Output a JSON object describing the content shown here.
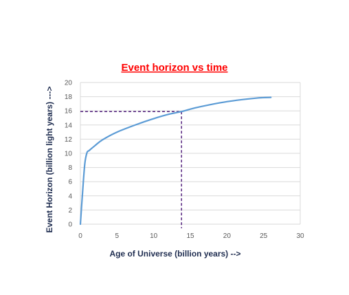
{
  "chart_data": {
    "type": "line",
    "title": "Event horizon vs  time",
    "xlabel": "Age of Universe (billion years) -->",
    "ylabel": "Event Horizon (billion light years) --->",
    "xlim": [
      0,
      30
    ],
    "ylim": [
      0,
      20
    ],
    "xticks": [
      0,
      5,
      10,
      15,
      20,
      25,
      30
    ],
    "yticks": [
      0,
      2,
      4,
      6,
      8,
      10,
      12,
      14,
      16,
      18,
      20
    ],
    "grid": "horizontal",
    "legend": "none",
    "series": [
      {
        "x": [
          0,
          0.3,
          0.6,
          0.9,
          1.2,
          2,
          3,
          5,
          8,
          10,
          12,
          13.8,
          16,
          20,
          24,
          26
        ],
        "y": [
          0,
          4.5,
          8.5,
          10.1,
          10.4,
          11.1,
          11.9,
          13.0,
          14.2,
          14.9,
          15.5,
          15.9,
          16.5,
          17.3,
          17.8,
          17.9
        ]
      }
    ],
    "annotation": {
      "x": 13.8,
      "y": 15.9,
      "style": "dashed"
    },
    "colors": {
      "line": "#5b9bd5",
      "annotation": "#5b2c83",
      "grid": "#d9d9d9",
      "title": "#ff0000",
      "axis_title": "#1f2d50"
    }
  }
}
